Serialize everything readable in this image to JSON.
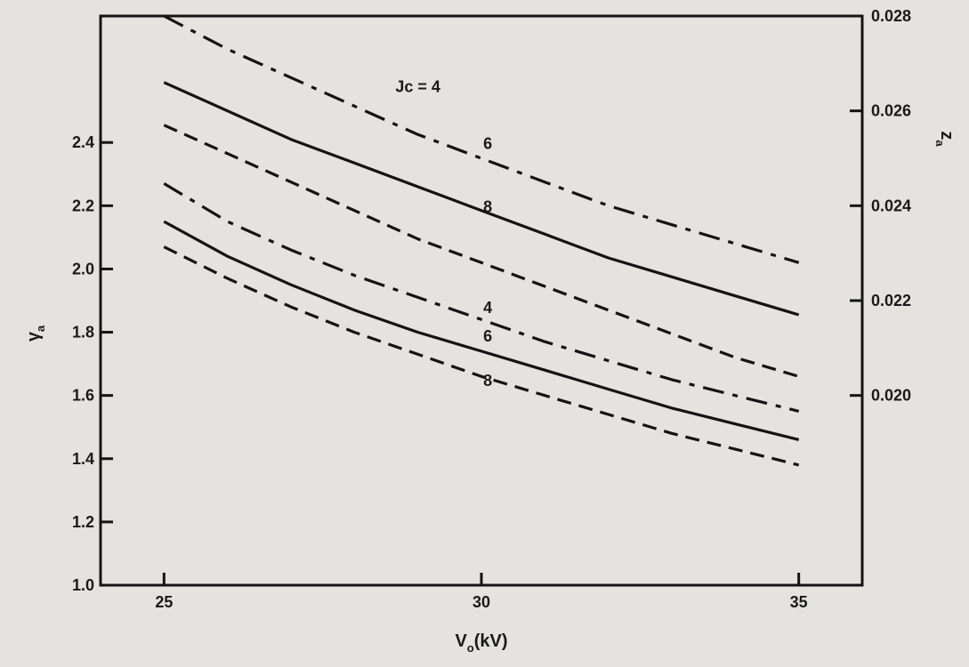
{
  "chart_data": {
    "type": "line",
    "title": "",
    "xlabel": {
      "main": "V",
      "sub": "o",
      "unit": "(kV)"
    },
    "ylabel_left": {
      "main": "γ",
      "sub": "a"
    },
    "ylabel_right": {
      "main": "z",
      "sub": "a"
    },
    "xlim": [
      24,
      36
    ],
    "ylim": [
      1.0,
      2.8
    ],
    "y2lim": [
      0.016,
      0.028
    ],
    "xticks": [
      {
        "value": 25,
        "label": "25"
      },
      {
        "value": 30,
        "label": "30"
      },
      {
        "value": 35,
        "label": "35"
      }
    ],
    "yticks": [
      {
        "value": 1.0,
        "label": "1.0"
      },
      {
        "value": 1.2,
        "label": "1.2"
      },
      {
        "value": 1.4,
        "label": "1.4"
      },
      {
        "value": 1.6,
        "label": "1.6"
      },
      {
        "value": 1.8,
        "label": "1.8"
      },
      {
        "value": 2.0,
        "label": "2.0"
      },
      {
        "value": 2.2,
        "label": "2.2"
      },
      {
        "value": 2.4,
        "label": "2.4"
      }
    ],
    "y2ticks": [
      {
        "value": 0.02,
        "label": "0.020"
      },
      {
        "value": 0.022,
        "label": "0.022"
      },
      {
        "value": 0.024,
        "label": "0.024"
      },
      {
        "value": 0.026,
        "label": "0.026"
      },
      {
        "value": 0.028,
        "label": "0.028"
      }
    ],
    "grid": false,
    "series": [
      {
        "group": "z_a",
        "axis": "right",
        "label": "Jc = 4",
        "style": "dashdot",
        "x": [
          25,
          26,
          27,
          28,
          29,
          30,
          31,
          32,
          33,
          34,
          35
        ],
        "y": [
          0.028,
          0.0273,
          0.0267,
          0.0261,
          0.0255,
          0.025,
          0.0245,
          0.024,
          0.0236,
          0.0232,
          0.0228
        ]
      },
      {
        "group": "z_a",
        "axis": "right",
        "label": "6",
        "style": "solid",
        "x": [
          25,
          26,
          27,
          28,
          29,
          30,
          31,
          32,
          33,
          34,
          35
        ],
        "y": [
          0.0266,
          0.026,
          0.0254,
          0.0249,
          0.0244,
          0.0239,
          0.0234,
          0.0229,
          0.0225,
          0.0221,
          0.0217
        ]
      },
      {
        "group": "z_a",
        "axis": "right",
        "label": "8",
        "style": "dashed",
        "x": [
          25,
          26,
          27,
          28,
          29,
          30,
          31,
          32,
          33,
          34,
          35
        ],
        "y": [
          0.0257,
          0.0251,
          0.0245,
          0.0239,
          0.0233,
          0.0228,
          0.0223,
          0.0218,
          0.0213,
          0.0208,
          0.0204
        ]
      },
      {
        "group": "gamma_a",
        "axis": "left",
        "label": "4",
        "style": "dashdot",
        "x": [
          25,
          26,
          27,
          28,
          29,
          30,
          31,
          32,
          33,
          34,
          35
        ],
        "y": [
          2.27,
          2.15,
          2.06,
          1.98,
          1.91,
          1.84,
          1.77,
          1.71,
          1.65,
          1.6,
          1.55
        ]
      },
      {
        "group": "gamma_a",
        "axis": "left",
        "label": "6",
        "style": "solid",
        "x": [
          25,
          26,
          27,
          28,
          29,
          30,
          31,
          32,
          33,
          34,
          35
        ],
        "y": [
          2.15,
          2.04,
          1.95,
          1.87,
          1.8,
          1.74,
          1.68,
          1.62,
          1.56,
          1.51,
          1.46
        ]
      },
      {
        "group": "gamma_a",
        "axis": "left",
        "label": "8",
        "style": "dashed",
        "x": [
          25,
          26,
          27,
          28,
          29,
          30,
          31,
          32,
          33,
          34,
          35
        ],
        "y": [
          2.07,
          1.97,
          1.88,
          1.8,
          1.73,
          1.66,
          1.6,
          1.54,
          1.48,
          1.43,
          1.38
        ]
      }
    ],
    "annotations": [
      {
        "text": "Jc = 4",
        "x": 29.0,
        "y": 2.56
      },
      {
        "text": "6",
        "x": 30.1,
        "y": 2.38
      },
      {
        "text": "8",
        "x": 30.1,
        "y": 2.18
      },
      {
        "text": "4",
        "x": 30.1,
        "y": 1.86
      },
      {
        "text": "6",
        "x": 30.1,
        "y": 1.77
      },
      {
        "text": "8",
        "x": 30.1,
        "y": 1.63
      }
    ]
  }
}
